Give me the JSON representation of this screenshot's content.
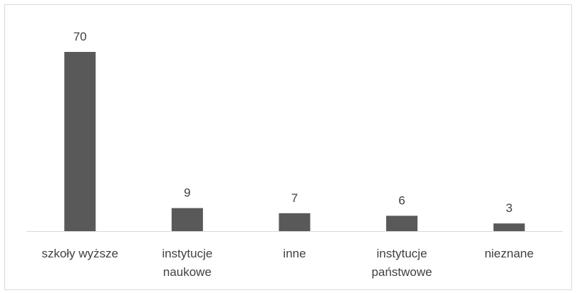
{
  "chart_data": {
    "type": "bar",
    "title": "",
    "xlabel": "",
    "ylabel": "",
    "categories": [
      [
        "szkoły wyższe"
      ],
      [
        "instytucje",
        "naukowe"
      ],
      [
        "inne"
      ],
      [
        "instytucje",
        "państwowe"
      ],
      [
        "nieznane"
      ]
    ],
    "values": [
      70,
      9,
      7,
      6,
      3
    ],
    "data_labels": [
      "70",
      "9",
      "7",
      "6",
      "3"
    ],
    "ylim": [
      0,
      80
    ],
    "grid": false,
    "legend": "none",
    "colors": {
      "bar": "#595959",
      "axis": "#d9d9d9",
      "text": "#404040"
    }
  }
}
